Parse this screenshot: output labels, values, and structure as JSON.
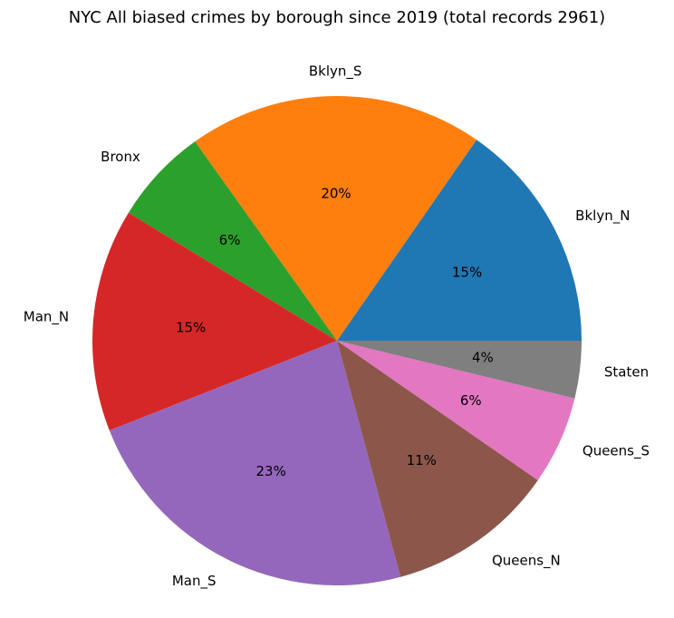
{
  "chart_data": {
    "type": "pie",
    "title": "NYC All biased crimes by borough since 2019 (total records 2961)",
    "categories": [
      "Bklyn_N",
      "Bklyn_S",
      "Bronx",
      "Man_N",
      "Man_S",
      "Queens_N",
      "Queens_S",
      "Staten"
    ],
    "values": [
      15.4,
      19.6,
      6.4,
      14.8,
      23.3,
      11.2,
      5.9,
      3.8
    ],
    "percent_labels": [
      "15%",
      "20%",
      "6%",
      "15%",
      "23%",
      "11%",
      "6%",
      "4%"
    ],
    "colors": [
      "#1f77b4",
      "#ff7f0e",
      "#2ca02c",
      "#d62728",
      "#9467bd",
      "#8c564b",
      "#e377c2",
      "#7f7f7f"
    ],
    "start_angle_deg": 0,
    "direction": "counterclockwise"
  }
}
